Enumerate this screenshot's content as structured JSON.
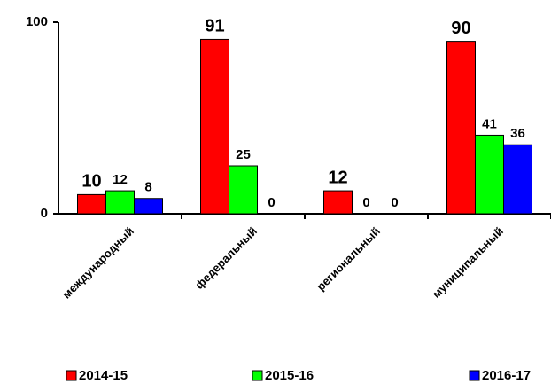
{
  "chart_data": {
    "type": "bar",
    "categories": [
      "международный",
      "федеральный",
      "региональный",
      "муниципальный"
    ],
    "series": [
      {
        "name": "2014-15",
        "color": "#ff0000",
        "values": [
          10,
          91,
          12,
          90
        ]
      },
      {
        "name": "2015-16",
        "color": "#00ff00",
        "values": [
          12,
          25,
          0,
          41
        ]
      },
      {
        "name": "2016-17",
        "color": "#0000ff",
        "values": [
          8,
          0,
          0,
          36
        ]
      }
    ],
    "ylim": [
      0,
      100
    ],
    "yticks": [
      0,
      100
    ],
    "grid": false,
    "legend": "bottom"
  }
}
